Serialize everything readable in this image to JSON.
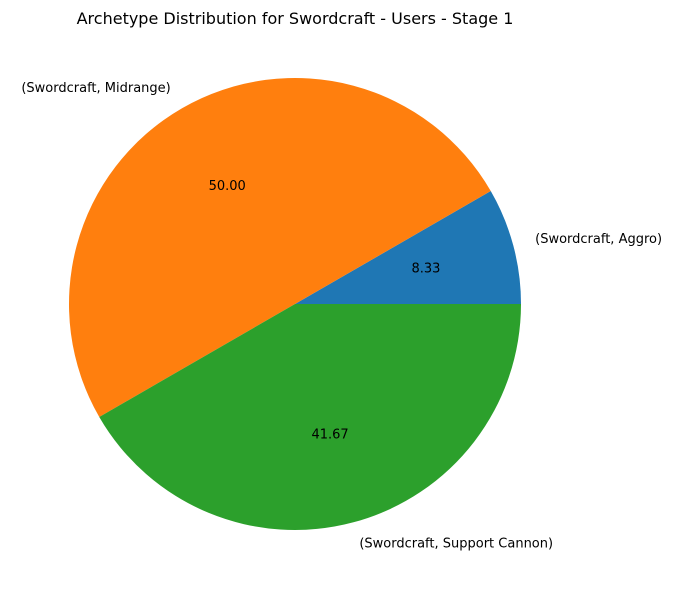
{
  "chart_data": {
    "type": "pie",
    "title": "Archetype Distribution for Swordcraft - Users - Stage 1",
    "slices": [
      {
        "label": "(Swordcraft, Aggro)",
        "value": 8.33,
        "pct_text": "8.33",
        "color": "#1f77b4"
      },
      {
        "label": "(Swordcraft, Midrange)",
        "value": 50.0,
        "pct_text": "50.00",
        "color": "#ff7f0e"
      },
      {
        "label": "(Swordcraft, Support Cannon)",
        "value": 41.67,
        "pct_text": "41.67",
        "color": "#2ca02c"
      }
    ],
    "start_angle_deg": 0,
    "direction": "counterclockwise"
  }
}
